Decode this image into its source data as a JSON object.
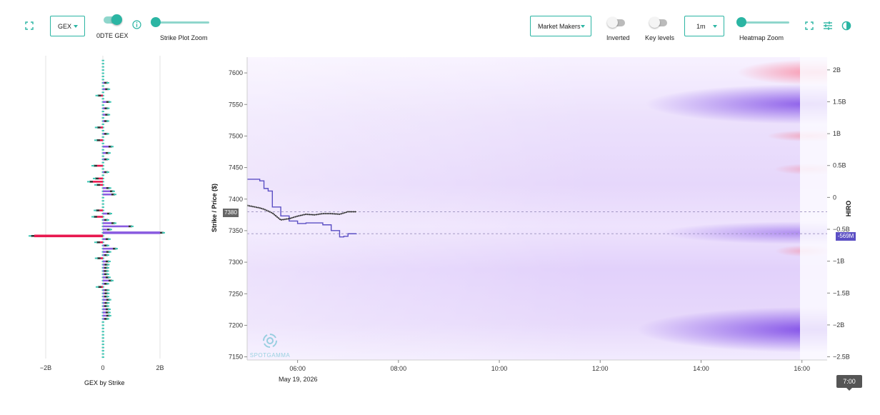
{
  "toolbar": {
    "metric_select": "GEX",
    "zero_dte_label": "0DTE GEX",
    "zero_dte_on": true,
    "strike_zoom_label": "Strike Plot Zoom",
    "strike_zoom_level": 0.05,
    "participant_select": "Market Makers",
    "inverted_label": "Inverted",
    "inverted_on": false,
    "key_levels_label": "Key levels",
    "key_levels_on": false,
    "interval_select": "1m",
    "heatmap_zoom_label": "Heatmap Zoom",
    "heatmap_zoom_level": 0.05,
    "icons": [
      "fullscreen-icon",
      "info-icon",
      "fullscreen-icon",
      "tune-icon",
      "contrast-icon"
    ],
    "accent_color": "#2bb5a3"
  },
  "gex_panel": {
    "title": "GEX by Strike",
    "x_ticks": [
      "−2B",
      "0",
      "2B"
    ],
    "colors": {
      "positive": "#8a5ce0",
      "negative": "#e8194f",
      "stem": "#3ec7b4"
    }
  },
  "heatmap": {
    "y_axis_title": "Strike / Price ($)",
    "y_ticks": [
      "7600",
      "7550",
      "7500",
      "7450",
      "7400",
      "7350",
      "7300",
      "7250",
      "7200",
      "7150"
    ],
    "x_ticks": [
      "06:00",
      "08:00",
      "10:00",
      "12:00",
      "14:00",
      "16:00"
    ],
    "date_label": "May 19, 2026",
    "price_marker": "7380",
    "right_axis_title": "HIRO",
    "right_ticks": [
      "2B",
      "1.5B",
      "1B",
      "0.5B",
      "0",
      "−0.5B",
      "−1B",
      "−1.5B",
      "−2B",
      "−2.5B"
    ],
    "hiro_marker": "-569M",
    "time_marker": "7:00",
    "watermark": "SPOTGAMMA",
    "colors": {
      "hiro_line": "#5b4fc4",
      "price_line": "#555555",
      "heat_high": "#7b3fe4",
      "heat_neg": "#f06b85"
    }
  },
  "chart_data": [
    {
      "type": "bar",
      "title": "",
      "xlabel": "GEX by Strike",
      "ylabel": "",
      "orientation": "horizontal",
      "xlim": [
        -2500000000.0,
        2500000000.0
      ],
      "categories": [
        7380,
        7375,
        7370,
        7365,
        7360,
        7355,
        7350,
        7345,
        7340,
        7335,
        7330,
        7325,
        7320,
        7315,
        7310,
        7305,
        7300,
        7295,
        7290,
        7285,
        7280,
        7275,
        7270,
        7265,
        7260,
        7255,
        7250,
        7245,
        7240,
        7235,
        7230,
        7225,
        7220,
        7215,
        7210,
        7405,
        7410,
        7415,
        7420,
        7425,
        7430,
        7440,
        7450,
        7460,
        7470,
        7480,
        7490,
        7500,
        7510,
        7520,
        7530,
        7540,
        7550,
        7560,
        7570,
        7580
      ],
      "values": [
        -120000000.0,
        150000000.0,
        -200000000.0,
        50000000.0,
        300000000.0,
        900000000.0,
        150000000.0,
        2000000000.0,
        -2400000000.0,
        100000000.0,
        -100000000.0,
        50000000.0,
        350000000.0,
        120000000.0,
        50000000.0,
        -80000000.0,
        100000000.0,
        60000000.0,
        50000000.0,
        40000000.0,
        50000000.0,
        100000000.0,
        200000000.0,
        50000000.0,
        -50000000.0,
        60000000.0,
        60000000.0,
        50000000.0,
        120000000.0,
        60000000.0,
        50000000.0,
        100000000.0,
        100000000.0,
        120000000.0,
        50000000.0,
        300000000.0,
        250000000.0,
        120000000.0,
        -100000000.0,
        -350000000.0,
        -150000000.0,
        50000000.0,
        -200000000.0,
        50000000.0,
        100000000.0,
        200000000.0,
        -100000000.0,
        50000000.0,
        -80000000.0,
        50000000.0,
        80000000.0,
        60000000.0,
        120000000.0,
        -60000000.0,
        80000000.0,
        50000000.0
      ]
    },
    {
      "type": "line",
      "title": "",
      "xlabel": "",
      "ylabel": "Strike / Price ($)",
      "ylim": [
        7145,
        7625
      ],
      "xlim": [
        "05:00",
        "16:30"
      ],
      "series": [
        {
          "x": [
            "05:00",
            "05:15",
            "05:20",
            "05:30",
            "05:40",
            "05:50",
            "06:00",
            "06:10",
            "06:20",
            "06:30",
            "06:40",
            "06:50",
            "07:00",
            "07:10"
          ],
          "values": [
            7390,
            7386,
            7384,
            7378,
            7367,
            7369,
            7373,
            7376,
            7375,
            7377,
            7377,
            7376,
            7380,
            7380
          ]
        },
        {
          "x": [
            "05:00",
            "05:15",
            "05:20",
            "05:25",
            "05:30",
            "05:40",
            "05:50",
            "06:00",
            "06:10",
            "06:20",
            "06:30",
            "06:40",
            "06:50",
            "06:55",
            "07:00",
            "07:10"
          ],
          "values": [
            285000000.0,
            260000000.0,
            140000000.0,
            100000000.0,
            -150000000.0,
            -290000000.0,
            -370000000.0,
            -410000000.0,
            -400000000.0,
            -400000000.0,
            -430000000.0,
            -520000000.0,
            -620000000.0,
            -610000000.0,
            -570000000.0,
            -569000000.0
          ]
        }
      ]
    }
  ]
}
